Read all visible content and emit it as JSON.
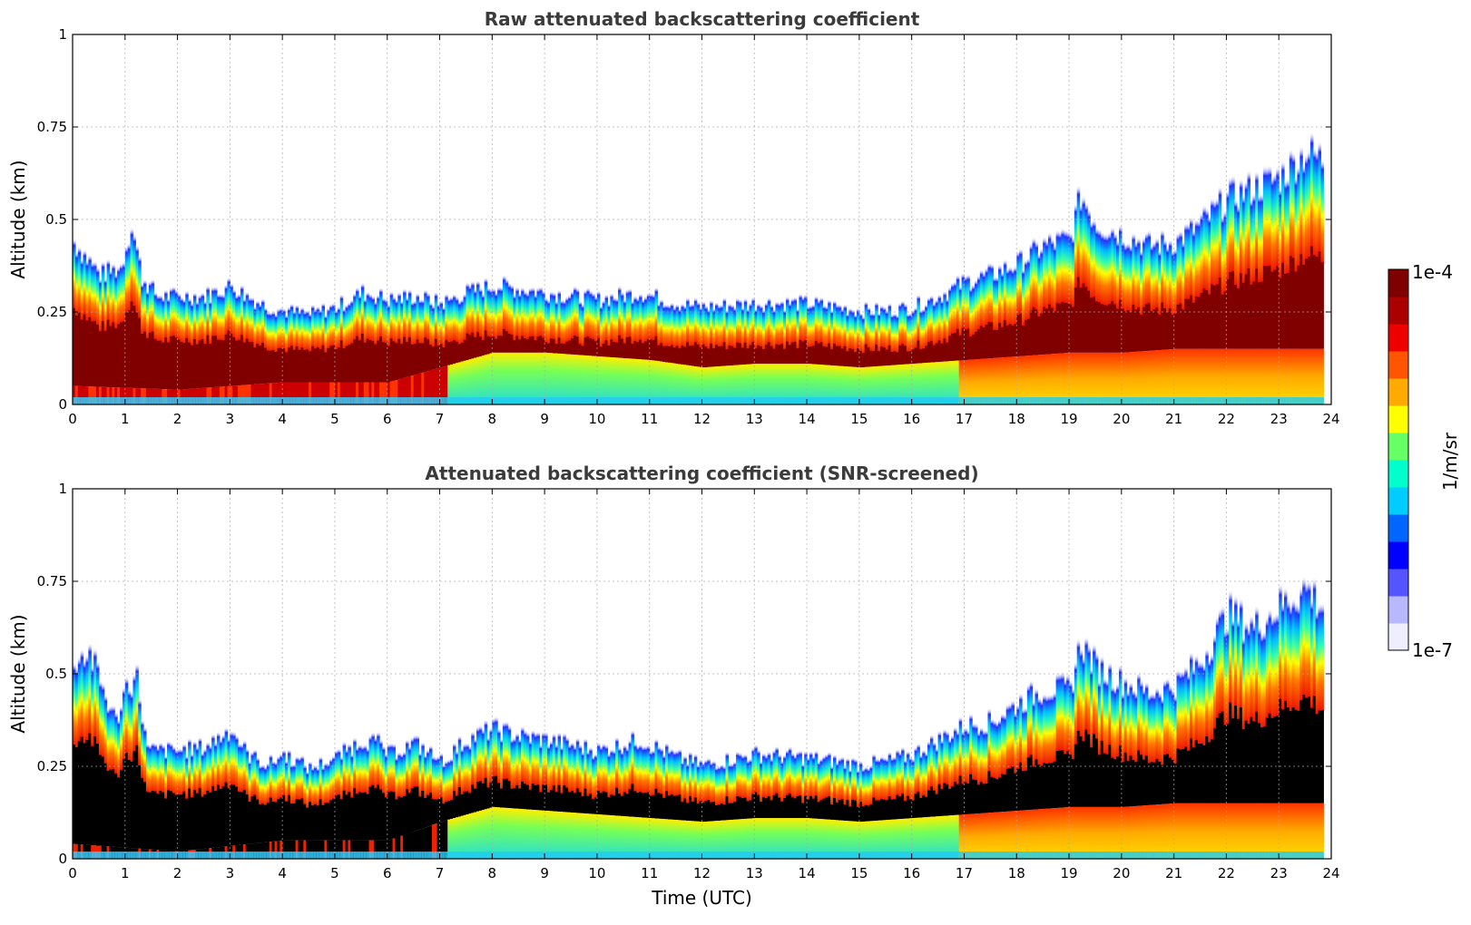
{
  "chart_data": [
    {
      "type": "heatmap",
      "title": "Raw attenuated backscattering coefficient",
      "xlabel": "",
      "ylabel": "Altitude (km)",
      "xlim": [
        0,
        24
      ],
      "ylim": [
        0,
        1
      ],
      "xticks": [
        "0",
        "1",
        "2",
        "3",
        "4",
        "5",
        "6",
        "7",
        "8",
        "9",
        "10",
        "11",
        "12",
        "13",
        "14",
        "15",
        "16",
        "17",
        "18",
        "19",
        "20",
        "21",
        "22",
        "23",
        "24"
      ],
      "yticks": [
        "0",
        "0.25",
        "0.5",
        "0.75",
        "1"
      ],
      "grid": true,
      "layer_top_km": [
        [
          0,
          0.45
        ],
        [
          0.5,
          0.36
        ],
        [
          0.9,
          0.38
        ],
        [
          1.1,
          0.5
        ],
        [
          1.3,
          0.35
        ],
        [
          1.6,
          0.3
        ],
        [
          2,
          0.3
        ],
        [
          2.5,
          0.3
        ],
        [
          3,
          0.33
        ],
        [
          3.3,
          0.3
        ],
        [
          3.7,
          0.27
        ],
        [
          4,
          0.26
        ],
        [
          4.5,
          0.25
        ],
        [
          5,
          0.27
        ],
        [
          5.5,
          0.31
        ],
        [
          5.8,
          0.3
        ],
        [
          6,
          0.29
        ],
        [
          6.5,
          0.3
        ],
        [
          7,
          0.28
        ],
        [
          7.5,
          0.31
        ],
        [
          8,
          0.33
        ],
        [
          8.5,
          0.32
        ],
        [
          9,
          0.31
        ],
        [
          10,
          0.29
        ],
        [
          10.8,
          0.31
        ],
        [
          11.5,
          0.28
        ],
        [
          12,
          0.27
        ],
        [
          13,
          0.28
        ],
        [
          14,
          0.28
        ],
        [
          15,
          0.26
        ],
        [
          15.5,
          0.26
        ],
        [
          16,
          0.27
        ],
        [
          16.5,
          0.3
        ],
        [
          17,
          0.34
        ],
        [
          17.5,
          0.36
        ],
        [
          18,
          0.39
        ],
        [
          18.5,
          0.44
        ],
        [
          19,
          0.46
        ],
        [
          19.2,
          0.58
        ],
        [
          19.5,
          0.5
        ],
        [
          20,
          0.47
        ],
        [
          20.5,
          0.44
        ],
        [
          21,
          0.45
        ],
        [
          21.5,
          0.5
        ],
        [
          22,
          0.57
        ],
        [
          22.5,
          0.6
        ],
        [
          23,
          0.63
        ],
        [
          23.5,
          0.7
        ],
        [
          23.8,
          0.68
        ]
      ],
      "dense_layer_bottom_km": [
        [
          0,
          0.05
        ],
        [
          2,
          0.04
        ],
        [
          4,
          0.06
        ],
        [
          6,
          0.06
        ],
        [
          7,
          0.1
        ],
        [
          8,
          0.14
        ],
        [
          9,
          0.14
        ],
        [
          10,
          0.13
        ],
        [
          11,
          0.12
        ],
        [
          12,
          0.1
        ],
        [
          13,
          0.11
        ],
        [
          14,
          0.11
        ],
        [
          15,
          0.1
        ],
        [
          16,
          0.11
        ],
        [
          17,
          0.12
        ],
        [
          18,
          0.13
        ],
        [
          19,
          0.14
        ],
        [
          20,
          0.14
        ],
        [
          21,
          0.15
        ],
        [
          22,
          0.15
        ],
        [
          23,
          0.15
        ],
        [
          23.8,
          0.15
        ]
      ]
    },
    {
      "type": "heatmap",
      "title": "Attenuated backscattering coefficient (SNR-screened)",
      "xlabel": "Time (UTC)",
      "ylabel": "Altitude (km)",
      "xlim": [
        0,
        24
      ],
      "ylim": [
        0,
        1
      ],
      "xticks": [
        "0",
        "1",
        "2",
        "3",
        "4",
        "5",
        "6",
        "7",
        "8",
        "9",
        "10",
        "11",
        "12",
        "13",
        "14",
        "15",
        "16",
        "17",
        "18",
        "19",
        "20",
        "21",
        "22",
        "23",
        "24"
      ],
      "yticks": [
        "0",
        "0.25",
        "0.5",
        "0.75",
        "1"
      ],
      "grid": true,
      "layer_top_km": [
        [
          0,
          0.55
        ],
        [
          0.3,
          0.57
        ],
        [
          0.6,
          0.45
        ],
        [
          0.8,
          0.38
        ],
        [
          1,
          0.48
        ],
        [
          1.2,
          0.5
        ],
        [
          1.4,
          0.3
        ],
        [
          2,
          0.3
        ],
        [
          2.5,
          0.31
        ],
        [
          3,
          0.36
        ],
        [
          3.3,
          0.29
        ],
        [
          3.7,
          0.26
        ],
        [
          4,
          0.29
        ],
        [
          4.5,
          0.25
        ],
        [
          5,
          0.28
        ],
        [
          5.5,
          0.33
        ],
        [
          5.8,
          0.32
        ],
        [
          6,
          0.29
        ],
        [
          6.5,
          0.32
        ],
        [
          7,
          0.27
        ],
        [
          7.5,
          0.33
        ],
        [
          8,
          0.36
        ],
        [
          8.5,
          0.34
        ],
        [
          9,
          0.33
        ],
        [
          10,
          0.3
        ],
        [
          10.8,
          0.33
        ],
        [
          11.5,
          0.28
        ],
        [
          12,
          0.26
        ],
        [
          13,
          0.29
        ],
        [
          14,
          0.28
        ],
        [
          15,
          0.26
        ],
        [
          15.5,
          0.27
        ],
        [
          16,
          0.29
        ],
        [
          16.5,
          0.33
        ],
        [
          17,
          0.37
        ],
        [
          17.5,
          0.38
        ],
        [
          18,
          0.43
        ],
        [
          18.5,
          0.47
        ],
        [
          19,
          0.47
        ],
        [
          19.2,
          0.6
        ],
        [
          19.5,
          0.53
        ],
        [
          20,
          0.49
        ],
        [
          20.5,
          0.46
        ],
        [
          21,
          0.48
        ],
        [
          21.5,
          0.55
        ],
        [
          22,
          0.68
        ],
        [
          22.5,
          0.64
        ],
        [
          23,
          0.7
        ],
        [
          23.5,
          0.75
        ],
        [
          23.8,
          0.7
        ]
      ],
      "dense_layer_bottom_km": [
        [
          0,
          0.04
        ],
        [
          2,
          0.02
        ],
        [
          4,
          0.05
        ],
        [
          6,
          0.05
        ],
        [
          7,
          0.1
        ],
        [
          8,
          0.14
        ],
        [
          9,
          0.13
        ],
        [
          10,
          0.12
        ],
        [
          11,
          0.11
        ],
        [
          12,
          0.1
        ],
        [
          13,
          0.11
        ],
        [
          14,
          0.11
        ],
        [
          15,
          0.1
        ],
        [
          16,
          0.11
        ],
        [
          17,
          0.12
        ],
        [
          18,
          0.13
        ],
        [
          19,
          0.14
        ],
        [
          20,
          0.14
        ],
        [
          21,
          0.15
        ],
        [
          22,
          0.15
        ],
        [
          23,
          0.15
        ],
        [
          23.8,
          0.15
        ]
      ]
    }
  ],
  "colorbar": {
    "label": "1/m/sr",
    "max_label": "1e-4",
    "min_label": "1e-7",
    "scale": "log",
    "range": [
      1e-07,
      0.0001
    ],
    "colors": [
      "#eeeeff",
      "#b8b8ff",
      "#5555ff",
      "#0000ff",
      "#0066ff",
      "#00ccff",
      "#00ffcc",
      "#66ff66",
      "#ffff00",
      "#ffaa00",
      "#ff5500",
      "#ee0000",
      "#aa0000",
      "#7f0000"
    ]
  }
}
